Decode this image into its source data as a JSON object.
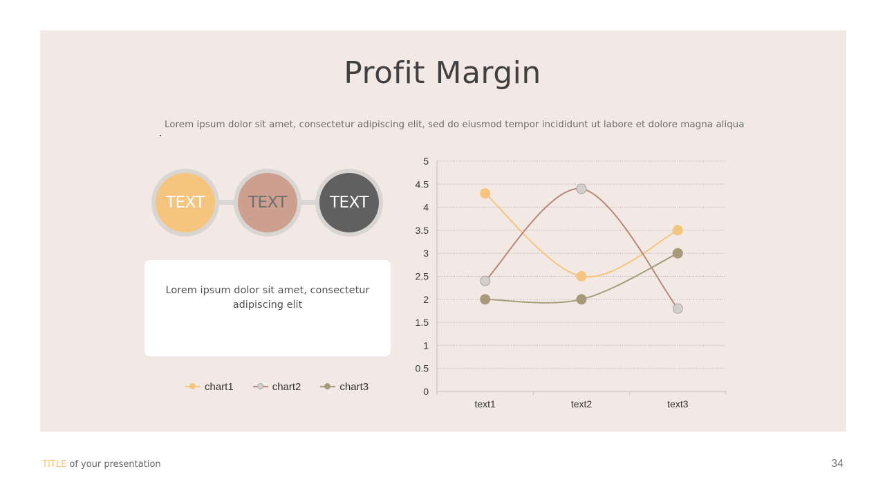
{
  "slide": {
    "title": "Profit Margin",
    "subtitle": "Lorem ipsum dolor sit amet, consectetur adipiscing elit, sed do eiusmod tempor incididunt ut labore et dolore magna aliqua",
    "subtitle_suffix": ".",
    "circles": [
      {
        "label": "TEXT",
        "color": "#f5c57f",
        "text_color": "#ffffff"
      },
      {
        "label": "TEXT",
        "color": "#cc9f8e",
        "text_color": "#6e6e6e"
      },
      {
        "label": "TEXT",
        "color": "#606060",
        "text_color": "#ffffff"
      }
    ],
    "textbox": "Lorem ipsum dolor sit amet, consectetur adipiscing elit",
    "footer": {
      "accent": "TITLE",
      "rest": " of your presentation"
    },
    "page_number": "34"
  },
  "chart_data": {
    "type": "line",
    "categories": [
      "text1",
      "text2",
      "text3"
    ],
    "series": [
      {
        "name": "chart1",
        "values": [
          4.3,
          2.5,
          3.5
        ],
        "line_color": "#f5c57f",
        "marker_color": "#f5c57f",
        "marker_border": "#f5c57f"
      },
      {
        "name": "chart2",
        "values": [
          2.4,
          4.4,
          1.8
        ],
        "line_color": "#b5877a",
        "marker_color": "#d2cfcd",
        "marker_border": "#a5a5a5"
      },
      {
        "name": "chart3",
        "values": [
          2,
          2,
          3
        ],
        "line_color": "#a69a7a",
        "marker_color": "#a69a7a",
        "marker_border": "#a69a7a"
      }
    ],
    "ylim": [
      0,
      5
    ],
    "yticks": [
      "0",
      "0.5",
      "1",
      "1.5",
      "2",
      "2.5",
      "3",
      "3.5",
      "4",
      "4.5",
      "5"
    ],
    "grid": true,
    "legend": "bottom-left",
    "smooth": true
  }
}
